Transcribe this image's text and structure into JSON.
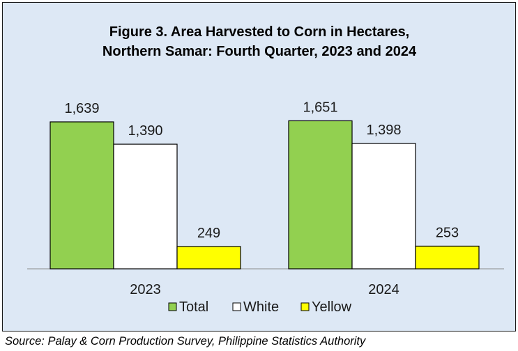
{
  "chart_data": {
    "type": "bar",
    "title_lines": [
      "Figure 3. Area Harvested to Corn in Hectares,",
      "Northern Samar: Fourth Quarter, 2023 and 2024"
    ],
    "categories": [
      "2023",
      "2024"
    ],
    "series": [
      {
        "name": "Total",
        "values": [
          1639,
          1651
        ],
        "labels": [
          "1,639",
          "1,651"
        ],
        "color": "#92d050"
      },
      {
        "name": "White",
        "values": [
          1390,
          1398
        ],
        "labels": [
          "1,390",
          "1,398"
        ],
        "color": "#ffffff"
      },
      {
        "name": "Yellow",
        "values": [
          249,
          253
        ],
        "labels": [
          "249",
          "253"
        ],
        "color": "#ffff00"
      }
    ],
    "ylim": [
      0,
      2000
    ],
    "grid": false,
    "legend_position": "bottom",
    "background_color": "#dde8f5"
  },
  "source": "Source: Palay & Corn Production Survey, Philippine Statistics Authority"
}
